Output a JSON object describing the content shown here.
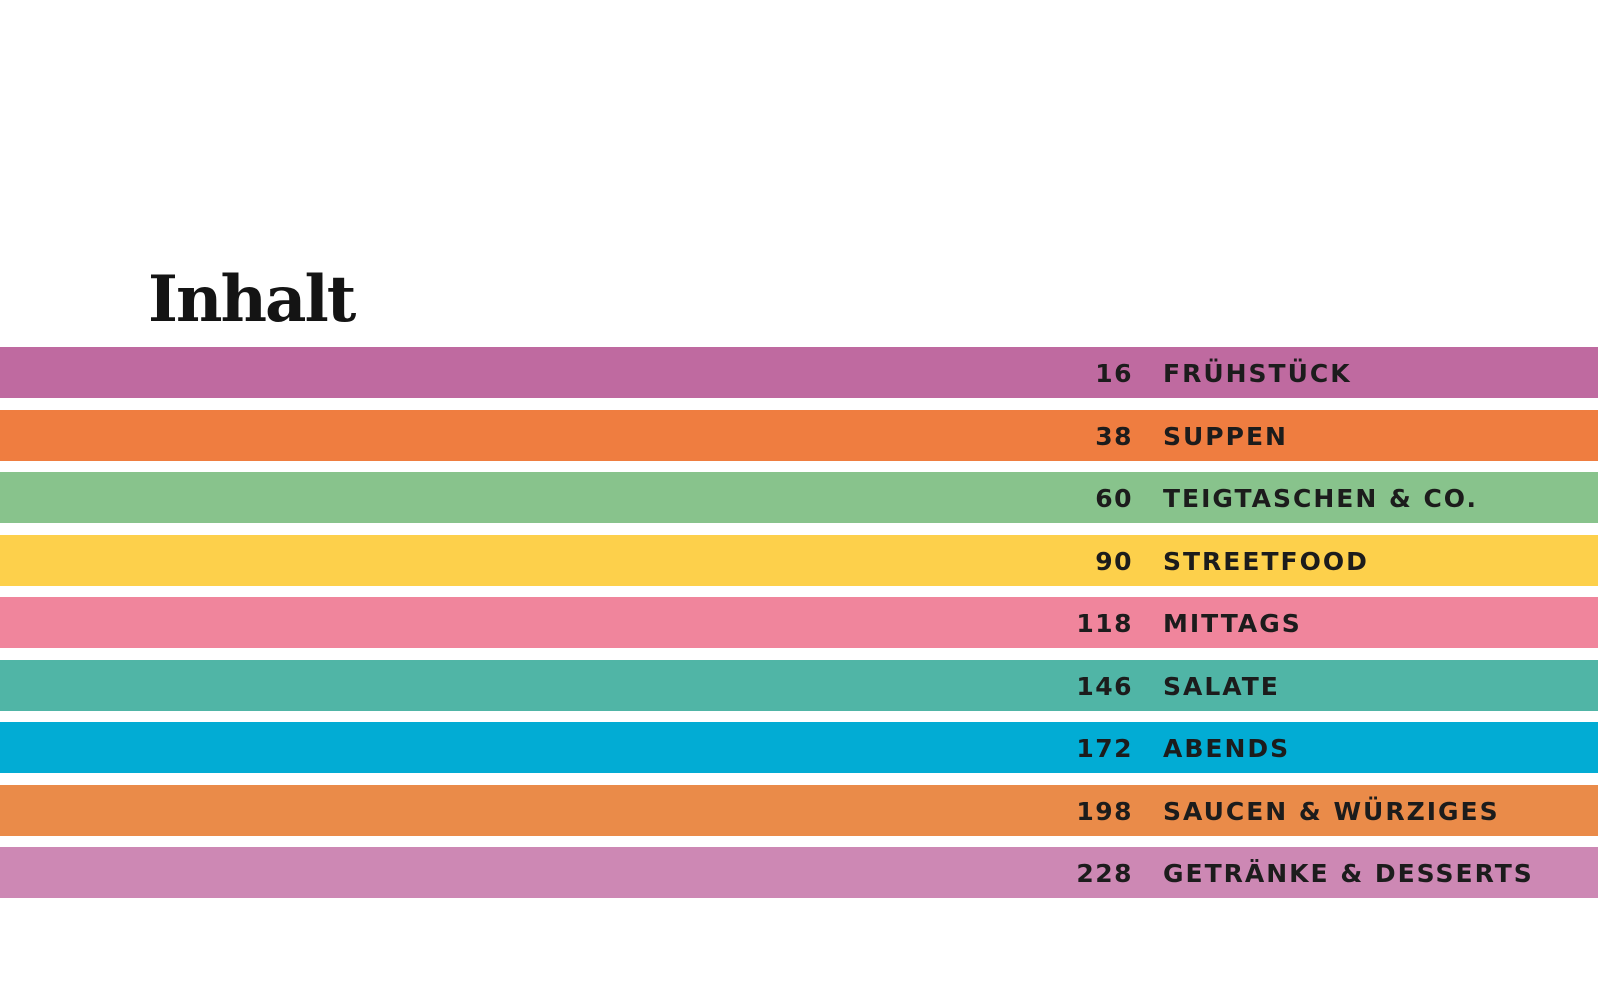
{
  "title": "Inhalt",
  "entries": [
    {
      "page": "16",
      "label": "FRÜHSTÜCK",
      "color": "#bf6aa0"
    },
    {
      "page": "38",
      "label": "SUPPEN",
      "color": "#ef7d40"
    },
    {
      "page": "60",
      "label": "TEIGTASCHEN & CO.",
      "color": "#88c38c"
    },
    {
      "page": "90",
      "label": "STREETFOOD",
      "color": "#fdd04b"
    },
    {
      "page": "118",
      "label": "MITTAGS",
      "color": "#f0859c"
    },
    {
      "page": "146",
      "label": "SALATE",
      "color": "#50b5a6"
    },
    {
      "page": "172",
      "label": "ABENDS",
      "color": "#02acd4"
    },
    {
      "page": "198",
      "label": "SAUCEN & WÜRZIGES",
      "color": "#ea8b49"
    },
    {
      "page": "228",
      "label": "GETRÄNKE & DESSERTS",
      "color": "#cd88b4"
    }
  ]
}
